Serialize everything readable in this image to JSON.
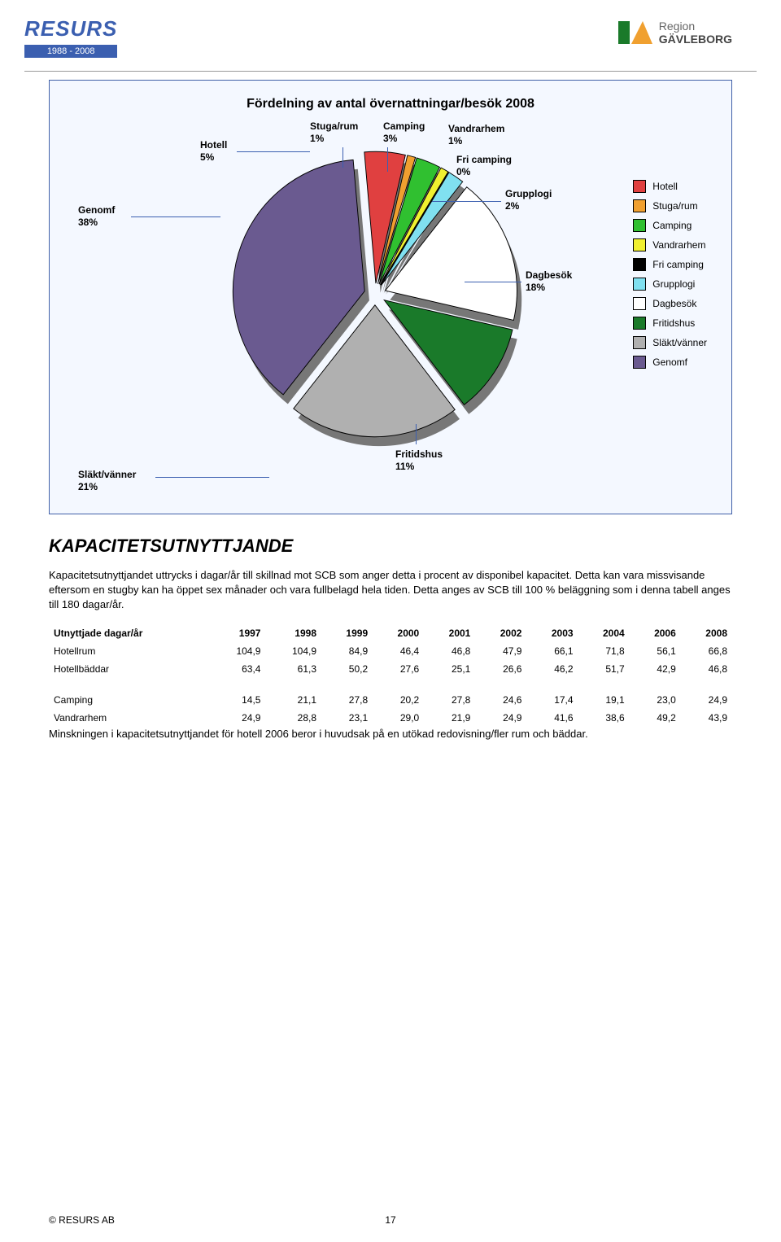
{
  "header": {
    "brand": "RESURS",
    "years": "1988 - 2008",
    "region_label": "Region",
    "region_name": "GÄVLEBORG"
  },
  "chart": {
    "type": "pie",
    "title": "Fördelning av antal övernattningar/besök 2008",
    "background_color": "#f4f8ff",
    "border_color": "#4060a8",
    "slices": [
      {
        "label": "Hotell",
        "pct": "5%",
        "color": "#e04040"
      },
      {
        "label": "Stuga/rum",
        "pct": "1%",
        "color": "#f0a030"
      },
      {
        "label": "Camping",
        "pct": "3%",
        "color": "#30c030"
      },
      {
        "label": "Vandrarhem",
        "pct": "1%",
        "color": "#f0f030"
      },
      {
        "label": "Fri camping",
        "pct": "0%",
        "color": "#000000"
      },
      {
        "label": "Grupplogi",
        "pct": "2%",
        "color": "#80e0f0"
      },
      {
        "label": "Dagbesök",
        "pct": "18%",
        "color": "#ffffff"
      },
      {
        "label": "Fritidshus",
        "pct": "11%",
        "color": "#1a7a2a"
      },
      {
        "label": "Släkt/vänner",
        "pct": "21%",
        "color": "#b0b0b0"
      },
      {
        "label": "Genomf",
        "pct": "38%",
        "color": "#6a5a90"
      }
    ],
    "legend": [
      {
        "label": "Hotell",
        "color": "#e04040"
      },
      {
        "label": "Stuga/rum",
        "color": "#f0a030"
      },
      {
        "label": "Camping",
        "color": "#30c030"
      },
      {
        "label": "Vandrarhem",
        "color": "#f0f030"
      },
      {
        "label": "Fri camping",
        "color": "#000000"
      },
      {
        "label": "Grupplogi",
        "color": "#80e0f0"
      },
      {
        "label": "Dagbesök",
        "color": "#ffffff"
      },
      {
        "label": "Fritidshus",
        "color": "#1a7a2a"
      },
      {
        "label": "Släkt/vänner",
        "color": "#b0b0b0"
      },
      {
        "label": "Genomf",
        "color": "#6a5a90"
      }
    ]
  },
  "section": {
    "heading": "KAPACITETSUTNYTTJANDE",
    "para": "Kapacitetsutnyttjandet uttrycks i dagar/år till skillnad mot SCB som anger detta i procent av disponibel kapacitet. Detta kan vara missvisande eftersom en stugby kan ha öppet sex månader och vara fullbelagd hela tiden. Detta anges av SCB till 100 % beläggning som i denna tabell anges till 180 dagar/år."
  },
  "table": {
    "header": [
      "Utnyttjade dagar/år",
      "1997",
      "1998",
      "1999",
      "2000",
      "2001",
      "2002",
      "2003",
      "2004",
      "2006",
      "2008"
    ],
    "rows": [
      [
        "Hotellrum",
        "104,9",
        "104,9",
        "84,9",
        "46,4",
        "46,8",
        "47,9",
        "66,1",
        "71,8",
        "56,1",
        "66,8"
      ],
      [
        "Hotellbäddar",
        "63,4",
        "61,3",
        "50,2",
        "27,6",
        "25,1",
        "26,6",
        "46,2",
        "51,7",
        "42,9",
        "46,8"
      ]
    ],
    "rows2": [
      [
        "Camping",
        "14,5",
        "21,1",
        "27,8",
        "20,2",
        "27,8",
        "24,6",
        "17,4",
        "19,1",
        "23,0",
        "24,9"
      ],
      [
        "Vandrarhem",
        "24,9",
        "28,8",
        "23,1",
        "29,0",
        "21,9",
        "24,9",
        "41,6",
        "38,6",
        "49,2",
        "43,9"
      ]
    ],
    "note": "Minskningen i kapacitetsutnyttjandet för hotell 2006 beror i huvudsak på en utökad redovisning/fler rum och bäddar."
  },
  "footer": {
    "copyright": "© RESURS AB",
    "page": "17"
  }
}
